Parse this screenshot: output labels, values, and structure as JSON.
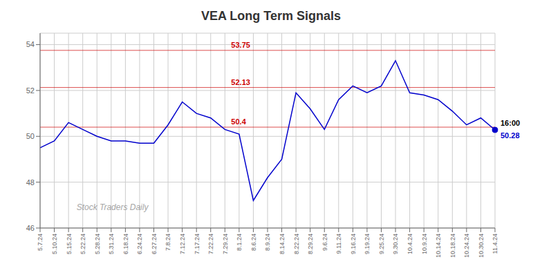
{
  "chart_data": {
    "type": "line",
    "title": "VEA Long Term Signals",
    "categories": [
      "5.7.24",
      "5.10.24",
      "5.15.24",
      "5.22.24",
      "5.28.24",
      "5.31.24",
      "6.18.24",
      "6.24.24",
      "6.27.24",
      "7.8.24",
      "7.12.24",
      "7.17.24",
      "7.22.24",
      "7.29.24",
      "8.1.24",
      "8.6.24",
      "8.9.24",
      "8.14.24",
      "8.22.24",
      "8.29.24",
      "9.6.24",
      "9.11.24",
      "9.16.24",
      "9.19.24",
      "9.25.24",
      "9.30.24",
      "10.4.24",
      "10.9.24",
      "10.14.24",
      "10.18.24",
      "10.24.24",
      "10.30.24",
      "11.4.24"
    ],
    "values": [
      49.5,
      49.8,
      50.6,
      50.3,
      50.0,
      49.8,
      49.8,
      49.7,
      49.7,
      50.5,
      51.5,
      51.0,
      50.8,
      50.3,
      50.1,
      47.2,
      48.2,
      49.0,
      51.9,
      51.2,
      50.3,
      51.6,
      52.2,
      51.9,
      52.2,
      53.3,
      51.9,
      51.8,
      51.6,
      51.1,
      50.5,
      50.8,
      50.28
    ],
    "color": "#0000cc",
    "ylim": [
      46,
      54.5
    ],
    "yticks": [
      46,
      48,
      50,
      52,
      54
    ],
    "grid": true,
    "reference_lines": [
      {
        "value": 53.75,
        "label": "53.75",
        "color": "#cc0000"
      },
      {
        "value": 52.13,
        "label": "52.13",
        "color": "#cc0000"
      },
      {
        "value": 50.4,
        "label": "50.4",
        "color": "#cc0000"
      }
    ],
    "annotations": [
      "16:00",
      "50.28"
    ],
    "watermark": "Stock Traders Daily"
  }
}
